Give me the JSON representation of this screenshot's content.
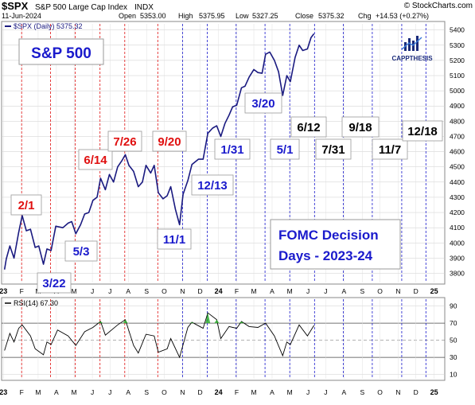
{
  "header": {
    "symbol": "$SPX",
    "name": "S&P 500 Large Cap Index",
    "exchange": "INDX",
    "copyright": "© StockCharts.com",
    "date": "11-Jun-2024",
    "open_label": "Open",
    "open": "5353.00",
    "high_label": "High",
    "high": "5375.95",
    "low_label": "Low",
    "low": "5327.25",
    "close_label": "Close",
    "close": "5375.32",
    "chg_label": "Chg",
    "chg": "+14.53 (+0.27%)"
  },
  "legend": {
    "price": "$SPX (Daily) 5375.32",
    "rsi": "RSI(14) 67.30"
  },
  "logo_text": "CAPPTHESIS",
  "title_box": "S&P 500",
  "fomc_box": {
    "line1": "FOMC Decision",
    "line2": "Days - 2023-24"
  },
  "colors": {
    "price_line": "#1a1a80",
    "past_blue": "#1a1acc",
    "hike_red": "#e01010",
    "future_black": "#000000",
    "grid": "#cccccc",
    "rsi_fill": "#22aa22"
  },
  "chart_data": {
    "type": "line",
    "x_axis": {
      "months": [
        "J",
        "F",
        "M",
        "A",
        "M",
        "J",
        "J",
        "A",
        "S",
        "O",
        "N",
        "D",
        "J",
        "F",
        "M",
        "A",
        "M",
        "J",
        "J",
        "A",
        "S",
        "O",
        "N",
        "D",
        "J"
      ],
      "years": [
        "23",
        "24",
        "25"
      ]
    },
    "price_axis": {
      "ylim": [
        3740,
        5440
      ],
      "ticks": [
        3800,
        3900,
        4000,
        4100,
        4200,
        4300,
        4400,
        4500,
        4600,
        4700,
        4800,
        4900,
        5000,
        5100,
        5200,
        5300,
        5400
      ]
    },
    "series": [
      {
        "values": [
          [
            "2023-01-03",
            3825
          ],
          [
            "2023-01-06",
            3895
          ],
          [
            "2023-01-12",
            3980
          ],
          [
            "2023-01-19",
            3900
          ],
          [
            "2023-01-27",
            4070
          ],
          [
            "2023-02-02",
            4180
          ],
          [
            "2023-02-09",
            4080
          ],
          [
            "2023-02-16",
            4090
          ],
          [
            "2023-02-24",
            3970
          ],
          [
            "2023-03-02",
            3980
          ],
          [
            "2023-03-10",
            3860
          ],
          [
            "2023-03-16",
            3960
          ],
          [
            "2023-03-23",
            3950
          ],
          [
            "2023-03-31",
            4110
          ],
          [
            "2023-04-12",
            4100
          ],
          [
            "2023-04-21",
            4130
          ],
          [
            "2023-04-27",
            4140
          ],
          [
            "2023-05-04",
            4060
          ],
          [
            "2023-05-12",
            4120
          ],
          [
            "2023-05-19",
            4190
          ],
          [
            "2023-05-26",
            4200
          ],
          [
            "2023-06-02",
            4280
          ],
          [
            "2023-06-09",
            4300
          ],
          [
            "2023-06-15",
            4425
          ],
          [
            "2023-06-23",
            4350
          ],
          [
            "2023-06-30",
            4450
          ],
          [
            "2023-07-07",
            4400
          ],
          [
            "2023-07-14",
            4500
          ],
          [
            "2023-07-21",
            4540
          ],
          [
            "2023-07-27",
            4580
          ],
          [
            "2023-08-02",
            4510
          ],
          [
            "2023-08-10",
            4470
          ],
          [
            "2023-08-18",
            4370
          ],
          [
            "2023-08-25",
            4400
          ],
          [
            "2023-08-31",
            4510
          ],
          [
            "2023-09-08",
            4460
          ],
          [
            "2023-09-14",
            4510
          ],
          [
            "2023-09-21",
            4330
          ],
          [
            "2023-09-29",
            4290
          ],
          [
            "2023-10-06",
            4310
          ],
          [
            "2023-10-12",
            4370
          ],
          [
            "2023-10-20",
            4220
          ],
          [
            "2023-10-27",
            4120
          ],
          [
            "2023-11-02",
            4320
          ],
          [
            "2023-11-10",
            4410
          ],
          [
            "2023-11-17",
            4515
          ],
          [
            "2023-11-28",
            4550
          ],
          [
            "2023-12-06",
            4550
          ],
          [
            "2023-12-14",
            4720
          ],
          [
            "2023-12-22",
            4755
          ],
          [
            "2023-12-29",
            4770
          ],
          [
            "2024-01-05",
            4700
          ],
          [
            "2024-01-12",
            4785
          ],
          [
            "2024-01-19",
            4840
          ],
          [
            "2024-01-25",
            4895
          ],
          [
            "2024-02-01",
            4905
          ],
          [
            "2024-02-09",
            5020
          ],
          [
            "2024-02-15",
            5030
          ],
          [
            "2024-02-22",
            5090
          ],
          [
            "2024-03-01",
            5140
          ],
          [
            "2024-03-08",
            5120
          ],
          [
            "2024-03-15",
            5115
          ],
          [
            "2024-03-21",
            5240
          ],
          [
            "2024-03-28",
            5255
          ],
          [
            "2024-04-05",
            5200
          ],
          [
            "2024-04-12",
            5125
          ],
          [
            "2024-04-19",
            4970
          ],
          [
            "2024-04-26",
            5100
          ],
          [
            "2024-05-02",
            5060
          ],
          [
            "2024-05-10",
            5220
          ],
          [
            "2024-05-17",
            5300
          ],
          [
            "2024-05-23",
            5265
          ],
          [
            "2024-05-31",
            5275
          ],
          [
            "2024-06-06",
            5350
          ],
          [
            "2024-06-11",
            5375
          ]
        ]
      }
    ],
    "rsi": {
      "ylim": [
        5,
        98
      ],
      "ticks": [
        10,
        30,
        50,
        70,
        90
      ],
      "values": [
        [
          "2023-01-03",
          38
        ],
        [
          "2023-01-12",
          58
        ],
        [
          "2023-01-19",
          48
        ],
        [
          "2023-01-27",
          64
        ],
        [
          "2023-02-02",
          68
        ],
        [
          "2023-02-16",
          55
        ],
        [
          "2023-02-24",
          40
        ],
        [
          "2023-03-10",
          33
        ],
        [
          "2023-03-16",
          48
        ],
        [
          "2023-03-23",
          45
        ],
        [
          "2023-04-03",
          62
        ],
        [
          "2023-04-21",
          55
        ],
        [
          "2023-05-04",
          44
        ],
        [
          "2023-05-19",
          60
        ],
        [
          "2023-06-02",
          65
        ],
        [
          "2023-06-15",
          72
        ],
        [
          "2023-06-23",
          56
        ],
        [
          "2023-07-14",
          68
        ],
        [
          "2023-07-27",
          74
        ],
        [
          "2023-08-10",
          44
        ],
        [
          "2023-08-18",
          35
        ],
        [
          "2023-08-31",
          57
        ],
        [
          "2023-09-14",
          55
        ],
        [
          "2023-09-21",
          36
        ],
        [
          "2023-10-06",
          40
        ],
        [
          "2023-10-12",
          52
        ],
        [
          "2023-10-27",
          30
        ],
        [
          "2023-11-10",
          65
        ],
        [
          "2023-11-17",
          71
        ],
        [
          "2023-12-06",
          64
        ],
        [
          "2023-12-14",
          82
        ],
        [
          "2023-12-29",
          74
        ],
        [
          "2024-01-05",
          52
        ],
        [
          "2024-01-19",
          66
        ],
        [
          "2024-02-01",
          64
        ],
        [
          "2024-02-09",
          72
        ],
        [
          "2024-02-22",
          66
        ],
        [
          "2024-03-08",
          65
        ],
        [
          "2024-03-21",
          70
        ],
        [
          "2024-04-05",
          55
        ],
        [
          "2024-04-19",
          32
        ],
        [
          "2024-04-26",
          48
        ],
        [
          "2024-05-02",
          45
        ],
        [
          "2024-05-17",
          68
        ],
        [
          "2024-05-31",
          55
        ],
        [
          "2024-06-11",
          67.3
        ]
      ]
    },
    "annotations": [
      {
        "label": "2/1",
        "date": "2023-02-01",
        "status": "hike",
        "box_color": "#ffffff"
      },
      {
        "label": "3/22",
        "date": "2023-03-22",
        "status": "hike"
      },
      {
        "label": "5/3",
        "date": "2023-05-03",
        "status": "hike"
      },
      {
        "label": "6/14",
        "date": "2023-06-14",
        "status": "pause"
      },
      {
        "label": "7/26",
        "date": "2023-07-26",
        "status": "hike"
      },
      {
        "label": "9/20",
        "date": "2023-09-20",
        "status": "pause"
      },
      {
        "label": "11/1",
        "date": "2023-11-01",
        "status": "pause"
      },
      {
        "label": "12/13",
        "date": "2023-12-13",
        "status": "pause"
      },
      {
        "label": "1/31",
        "date": "2024-01-31",
        "status": "pause"
      },
      {
        "label": "3/20",
        "date": "2024-03-20",
        "status": "pause"
      },
      {
        "label": "5/1",
        "date": "2024-05-01",
        "status": "pause"
      },
      {
        "label": "6/12",
        "date": "2024-06-12",
        "status": "upcoming"
      },
      {
        "label": "7/31",
        "date": "2024-07-31",
        "status": "upcoming"
      },
      {
        "label": "9/18",
        "date": "2024-09-18",
        "status": "upcoming"
      },
      {
        "label": "11/7",
        "date": "2024-11-07",
        "status": "upcoming"
      },
      {
        "label": "12/18",
        "date": "2024-12-18",
        "status": "upcoming"
      }
    ]
  }
}
